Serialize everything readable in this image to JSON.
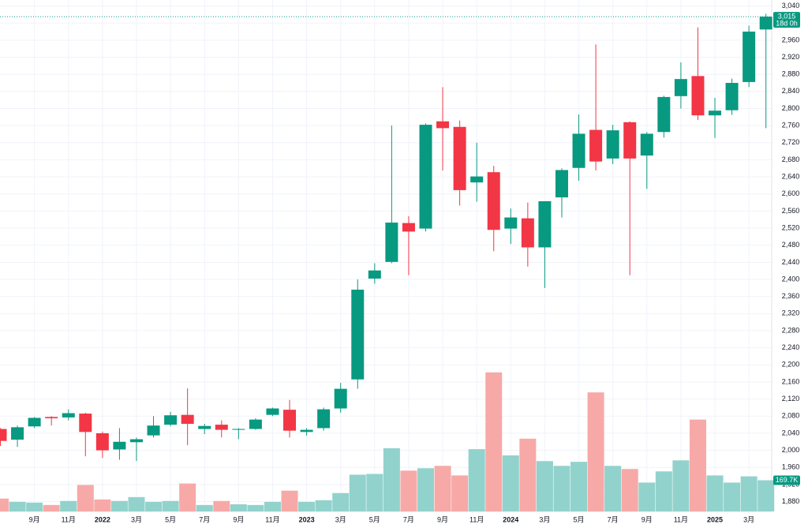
{
  "chart_data": {
    "type": "candlestick",
    "categories": [
      null,
      null,
      "9月",
      null,
      "11月",
      null,
      "2022",
      null,
      "3月",
      null,
      "5月",
      null,
      "7月",
      null,
      "9月",
      null,
      "11月",
      null,
      "2023",
      null,
      "3月",
      null,
      "5月",
      null,
      "7月",
      null,
      "9月",
      null,
      "11月",
      null,
      "2024",
      null,
      "3月",
      null,
      "5月",
      null,
      "7月",
      null,
      "9月",
      null,
      "11月",
      null,
      "2025",
      null,
      "3月",
      null
    ],
    "open": [
      2050,
      2025,
      2056,
      2078,
      2077,
      2086,
      2040,
      2002,
      2019,
      2035,
      2060,
      2083,
      2050,
      2060,
      2048,
      2050,
      2083,
      2095,
      2043,
      2052,
      2098,
      2166,
      2402,
      2441,
      2532,
      2519,
      2770,
      2757,
      2627,
      2651,
      2519,
      2543,
      2475,
      2592,
      2661,
      2750,
      2683,
      2768,
      2690,
      2745,
      2829,
      2876,
      2784,
      2796,
      2862,
      2985
    ],
    "high": [
      2052,
      2058,
      2078,
      2080,
      2096,
      2088,
      2044,
      2052,
      2030,
      2080,
      2090,
      2145,
      2062,
      2070,
      2052,
      2075,
      2100,
      2118,
      2052,
      2100,
      2158,
      2400,
      2438,
      2760,
      2548,
      2765,
      2850,
      2772,
      2720,
      2666,
      2566,
      2580,
      2583,
      2660,
      2786,
      2950,
      2762,
      2770,
      2745,
      2830,
      2908,
      2990,
      2825,
      2870,
      2994,
      3022
    ],
    "low": [
      2010,
      2008,
      2052,
      2058,
      2070,
      1986,
      1982,
      1978,
      1975,
      2030,
      2056,
      2012,
      2038,
      2030,
      2026,
      2048,
      2080,
      2030,
      2035,
      2046,
      2088,
      2144,
      2390,
      2438,
      2410,
      2512,
      2655,
      2573,
      2582,
      2466,
      2483,
      2430,
      2380,
      2545,
      2631,
      2655,
      2670,
      2410,
      2612,
      2732,
      2800,
      2773,
      2731,
      2785,
      2850,
      2754
    ],
    "close": [
      2022,
      2054,
      2076,
      2075,
      2087,
      2043,
      2000,
      2020,
      2026,
      2058,
      2082,
      2062,
      2057,
      2048,
      2050,
      2072,
      2098,
      2046,
      2048,
      2096,
      2144,
      2376,
      2421,
      2533,
      2512,
      2762,
      2754,
      2609,
      2641,
      2516,
      2545,
      2475,
      2583,
      2656,
      2741,
      2676,
      2749,
      2683,
      2741,
      2827,
      2869,
      2784,
      2795,
      2860,
      2980,
      3015
    ],
    "volume": [
      70,
      52,
      48,
      35,
      57,
      144,
      65,
      57,
      78,
      52,
      57,
      152,
      35,
      57,
      39,
      35,
      52,
      113,
      52,
      61,
      100,
      200,
      204,
      344,
      222,
      235,
      248,
      196,
      339,
      757,
      305,
      396,
      274,
      248,
      270,
      648,
      248,
      231,
      157,
      218,
      278,
      500,
      196,
      157,
      191,
      169.7
    ],
    "vlim": [
      0,
      2784
    ],
    "ylim": [
      1857,
      3054
    ],
    "yticks": [
      {
        "value": 1880,
        "label": "1,880"
      },
      {
        "value": 1920,
        "label": "1,920"
      },
      {
        "value": 1960,
        "label": "1,960"
      },
      {
        "value": 2000,
        "label": "2,000"
      },
      {
        "value": 2040,
        "label": "2,040"
      },
      {
        "value": 2080,
        "label": "2,080"
      },
      {
        "value": 2120,
        "label": "2,120"
      },
      {
        "value": 2160,
        "label": "2,160"
      },
      {
        "value": 2200,
        "label": "2,200"
      },
      {
        "value": 2240,
        "label": "2,240"
      },
      {
        "value": 2280,
        "label": "2,280"
      },
      {
        "value": 2320,
        "label": "2,320"
      },
      {
        "value": 2360,
        "label": "2,360"
      },
      {
        "value": 2400,
        "label": "2,400"
      },
      {
        "value": 2440,
        "label": "2,440"
      },
      {
        "value": 2480,
        "label": "2,480"
      },
      {
        "value": 2520,
        "label": "2,520"
      },
      {
        "value": 2560,
        "label": "2,560"
      },
      {
        "value": 2600,
        "label": "2,600"
      },
      {
        "value": 2640,
        "label": "2,640"
      },
      {
        "value": 2680,
        "label": "2,680"
      },
      {
        "value": 2720,
        "label": "2,720"
      },
      {
        "value": 2760,
        "label": "2,760"
      },
      {
        "value": 2800,
        "label": "2,800"
      },
      {
        "value": 2840,
        "label": "2,840"
      },
      {
        "value": 2880,
        "label": "2,880"
      },
      {
        "value": 2920,
        "label": "2,920"
      },
      {
        "value": 2960,
        "label": "2,960"
      },
      {
        "value": 3000,
        "label": "3,000"
      },
      {
        "value": 3040,
        "label": "3,040"
      }
    ],
    "grid": true,
    "up_color": "#089981",
    "down_color": "#f23645",
    "volume_up_color": "#92d2cc",
    "volume_down_color": "#f7a9a7",
    "price_tag": {
      "label": "3,015",
      "countdown": "18d 0h"
    },
    "volume_tag": {
      "label": "169.7K"
    }
  }
}
